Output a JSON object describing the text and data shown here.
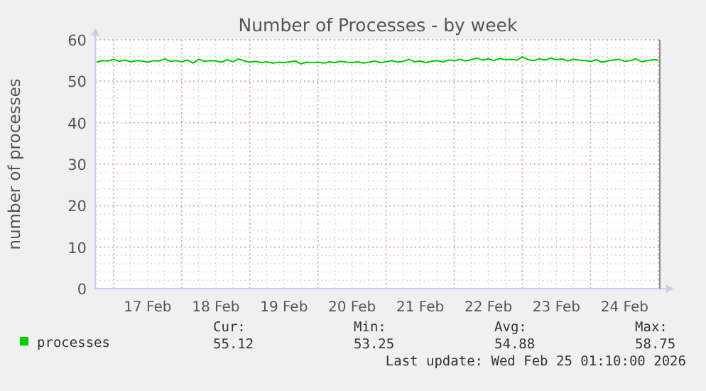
{
  "chart_data": {
    "type": "line",
    "title": "Number of Processes - by week",
    "ylabel": "number of processes",
    "xlim": [
      "2026-02-16T17:30",
      "2026-02-25T00:40"
    ],
    "xticks": [
      {
        "value": "2026-02-17T12:00",
        "label": "17 Feb"
      },
      {
        "value": "2026-02-18T12:00",
        "label": "18 Feb"
      },
      {
        "value": "2026-02-19T12:00",
        "label": "19 Feb"
      },
      {
        "value": "2026-02-20T12:00",
        "label": "20 Feb"
      },
      {
        "value": "2026-02-21T12:00",
        "label": "21 Feb"
      },
      {
        "value": "2026-02-22T12:00",
        "label": "22 Feb"
      },
      {
        "value": "2026-02-23T12:00",
        "label": "23 Feb"
      },
      {
        "value": "2026-02-24T12:00",
        "label": "24 Feb"
      }
    ],
    "ylim": [
      0,
      60
    ],
    "yticks": [
      0,
      10,
      20,
      30,
      40,
      50,
      60
    ],
    "grid": true,
    "legend": "bottom left",
    "marker": "none",
    "line_style": "solid",
    "x": [
      "2026-02-16T18:00",
      "2026-02-16T20:00",
      "2026-02-16T22:00",
      "2026-02-17T00:00",
      "2026-02-17T02:00",
      "2026-02-17T04:00",
      "2026-02-17T06:00",
      "2026-02-17T08:00",
      "2026-02-17T10:00",
      "2026-02-17T12:00",
      "2026-02-17T14:00",
      "2026-02-17T16:00",
      "2026-02-17T18:00",
      "2026-02-17T20:00",
      "2026-02-17T22:00",
      "2026-02-18T00:00",
      "2026-02-18T02:00",
      "2026-02-18T04:00",
      "2026-02-18T06:00",
      "2026-02-18T08:00",
      "2026-02-18T10:00",
      "2026-02-18T12:00",
      "2026-02-18T14:00",
      "2026-02-18T16:00",
      "2026-02-18T18:00",
      "2026-02-18T20:00",
      "2026-02-18T22:00",
      "2026-02-19T00:00",
      "2026-02-19T02:00",
      "2026-02-19T04:00",
      "2026-02-19T06:00",
      "2026-02-19T08:00",
      "2026-02-19T10:00",
      "2026-02-19T12:00",
      "2026-02-19T14:00",
      "2026-02-19T16:00",
      "2026-02-19T18:00",
      "2026-02-19T20:00",
      "2026-02-19T22:00",
      "2026-02-20T00:00",
      "2026-02-20T02:00",
      "2026-02-20T04:00",
      "2026-02-20T06:00",
      "2026-02-20T08:00",
      "2026-02-20T10:00",
      "2026-02-20T12:00",
      "2026-02-20T14:00",
      "2026-02-20T16:00",
      "2026-02-20T18:00",
      "2026-02-20T20:00",
      "2026-02-20T22:00",
      "2026-02-21T00:00",
      "2026-02-21T02:00",
      "2026-02-21T04:00",
      "2026-02-21T06:00",
      "2026-02-21T08:00",
      "2026-02-21T10:00",
      "2026-02-21T12:00",
      "2026-02-21T14:00",
      "2026-02-21T16:00",
      "2026-02-21T18:00",
      "2026-02-21T20:00",
      "2026-02-21T22:00",
      "2026-02-22T00:00",
      "2026-02-22T02:00",
      "2026-02-22T04:00",
      "2026-02-22T06:00",
      "2026-02-22T08:00",
      "2026-02-22T10:00",
      "2026-02-22T12:00",
      "2026-02-22T14:00",
      "2026-02-22T16:00",
      "2026-02-22T18:00",
      "2026-02-22T20:00",
      "2026-02-22T22:00",
      "2026-02-23T00:00",
      "2026-02-23T02:00",
      "2026-02-23T04:00",
      "2026-02-23T06:00",
      "2026-02-23T08:00",
      "2026-02-23T10:00",
      "2026-02-23T12:00",
      "2026-02-23T14:00",
      "2026-02-23T16:00",
      "2026-02-23T18:00",
      "2026-02-23T20:00",
      "2026-02-23T22:00",
      "2026-02-24T00:00",
      "2026-02-24T02:00",
      "2026-02-24T04:00",
      "2026-02-24T06:00",
      "2026-02-24T08:00",
      "2026-02-24T10:00",
      "2026-02-24T12:00",
      "2026-02-24T14:00",
      "2026-02-24T16:00",
      "2026-02-24T18:00",
      "2026-02-24T20:00",
      "2026-02-24T22:00",
      "2026-02-25T00:00"
    ],
    "series": [
      {
        "name": "processes",
        "color": "#00cc00",
        "values": [
          54.6,
          55.0,
          54.9,
          55.3,
          54.8,
          55.1,
          54.7,
          55.0,
          54.9,
          54.6,
          55.0,
          54.9,
          55.4,
          54.8,
          55.0,
          54.7,
          55.1,
          54.4,
          55.3,
          54.8,
          55.0,
          54.9,
          54.6,
          55.2,
          54.7,
          55.4,
          54.9,
          54.6,
          54.8,
          54.5,
          54.7,
          54.4,
          54.6,
          54.5,
          54.7,
          54.9,
          54.2,
          54.6,
          54.5,
          54.6,
          54.4,
          54.7,
          54.5,
          54.8,
          54.6,
          54.5,
          54.7,
          54.4,
          54.6,
          54.9,
          54.5,
          54.7,
          55.0,
          54.6,
          54.8,
          55.3,
          54.7,
          54.9,
          54.5,
          54.8,
          55.0,
          54.7,
          55.1,
          55.0,
          55.3,
          54.9,
          55.2,
          55.6,
          55.1,
          55.4,
          55.0,
          55.5,
          55.2,
          55.3,
          55.1,
          55.9,
          55.2,
          55.0,
          55.4,
          55.1,
          55.6,
          55.2,
          55.4,
          54.9,
          55.3,
          55.1,
          55.0,
          54.8,
          55.2,
          54.6,
          54.9,
          55.1,
          55.3,
          54.8,
          55.0,
          55.4,
          54.7,
          55.0,
          55.2,
          55.1
        ]
      }
    ],
    "annotations": [
      "Cur:",
      "55.12",
      "Min:",
      "53.25",
      "Avg:",
      "54.88",
      "Max:",
      "58.75",
      "Last update: Wed Feb 25 01:10:00 2026"
    ]
  }
}
